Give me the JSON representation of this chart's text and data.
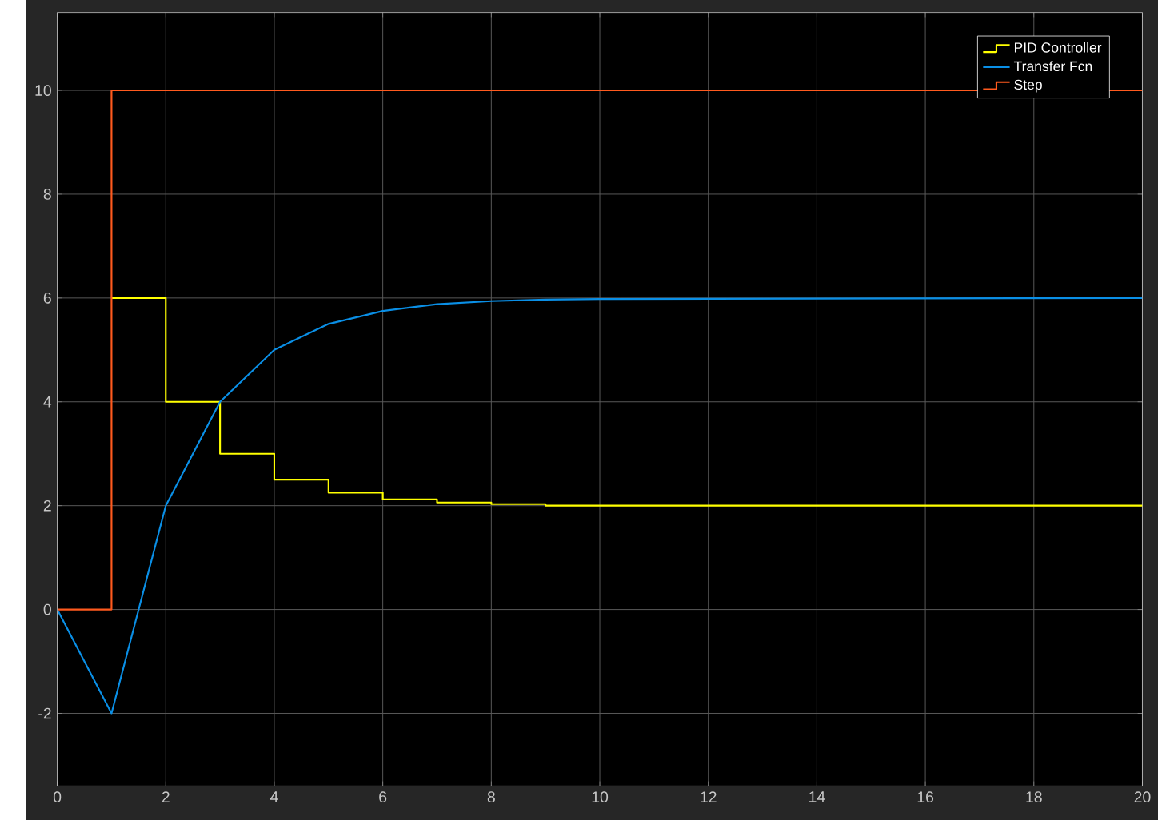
{
  "chart_data": {
    "type": "line",
    "series": [
      {
        "name": "PID Controller",
        "type": "step",
        "color": "#ffff00",
        "x": [
          1,
          2,
          3,
          4,
          5,
          6,
          7,
          8,
          9,
          20
        ],
        "values": [
          6,
          4,
          3,
          2.5,
          2.25,
          2.12,
          2.06,
          2.03,
          2,
          2
        ]
      },
      {
        "name": "Transfer Fcn",
        "color": "#0a8fe6",
        "x": [
          0,
          1,
          2,
          3,
          4,
          5,
          6,
          7,
          8,
          9,
          10,
          20
        ],
        "values": [
          0,
          -2,
          2,
          4,
          5,
          5.5,
          5.75,
          5.88,
          5.94,
          5.97,
          5.98,
          6
        ]
      },
      {
        "name": "Step",
        "type": "step",
        "color": "#ff5a1e",
        "x": [
          0,
          1,
          20
        ],
        "values": [
          0,
          10,
          10
        ]
      }
    ],
    "xlim": [
      0,
      20
    ],
    "ylim": [
      -3.4,
      11.5
    ],
    "xticks": [
      0,
      2,
      4,
      6,
      8,
      10,
      12,
      14,
      16,
      18,
      20
    ],
    "yticks": [
      -2,
      0,
      2,
      4,
      6,
      8,
      10
    ],
    "grid": true,
    "legend": "top right",
    "marker": "none",
    "line_style": "solid"
  }
}
